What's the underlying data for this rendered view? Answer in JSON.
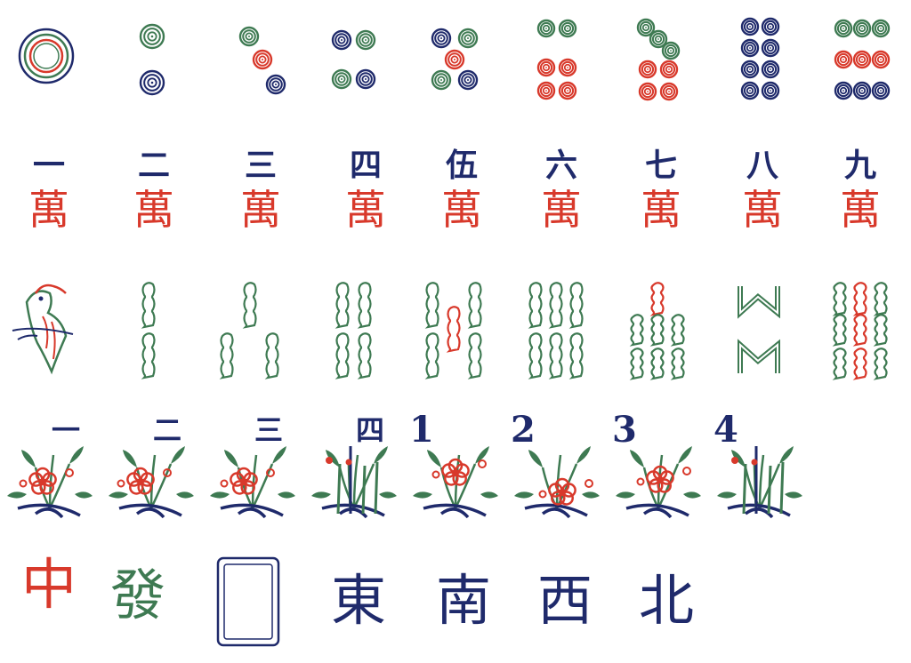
{
  "colors": {
    "blue": "#1f2a6b",
    "green": "#3e7a52",
    "red": "#d8392b"
  },
  "rows": {
    "circles": [
      {
        "name": "circle-1",
        "count": 1
      },
      {
        "name": "circle-2",
        "count": 2
      },
      {
        "name": "circle-3",
        "count": 3
      },
      {
        "name": "circle-4",
        "count": 4
      },
      {
        "name": "circle-5",
        "count": 5
      },
      {
        "name": "circle-6",
        "count": 6
      },
      {
        "name": "circle-7",
        "count": 7
      },
      {
        "name": "circle-8",
        "count": 8
      },
      {
        "name": "circle-9",
        "count": 9
      }
    ],
    "characters": {
      "suit_char": "萬",
      "numerals": [
        "一",
        "二",
        "三",
        "四",
        "伍",
        "六",
        "七",
        "八",
        "九"
      ]
    },
    "bamboo": [
      {
        "name": "bamboo-1",
        "count": 1,
        "icon": "bird-icon"
      },
      {
        "name": "bamboo-2",
        "count": 2
      },
      {
        "name": "bamboo-3",
        "count": 3
      },
      {
        "name": "bamboo-4",
        "count": 4
      },
      {
        "name": "bamboo-5",
        "count": 5
      },
      {
        "name": "bamboo-6",
        "count": 6
      },
      {
        "name": "bamboo-7",
        "count": 7
      },
      {
        "name": "bamboo-8",
        "count": 8
      },
      {
        "name": "bamboo-9",
        "count": 9
      }
    ],
    "flowers": {
      "labels": [
        "一",
        "二",
        "三",
        "四",
        "1",
        "2",
        "3",
        "4"
      ],
      "icons": [
        "plum-icon",
        "orchid-icon",
        "chrysanthemum-icon",
        "bamboo-plant-icon",
        "plum-icon",
        "orchid-icon",
        "chrysanthemum-icon",
        "bamboo-plant-icon"
      ]
    },
    "honors": {
      "red_dragon": "中",
      "green_dragon": "發",
      "white_dragon_icon": "frame-icon",
      "winds": [
        "東",
        "南",
        "西",
        "北"
      ]
    }
  }
}
